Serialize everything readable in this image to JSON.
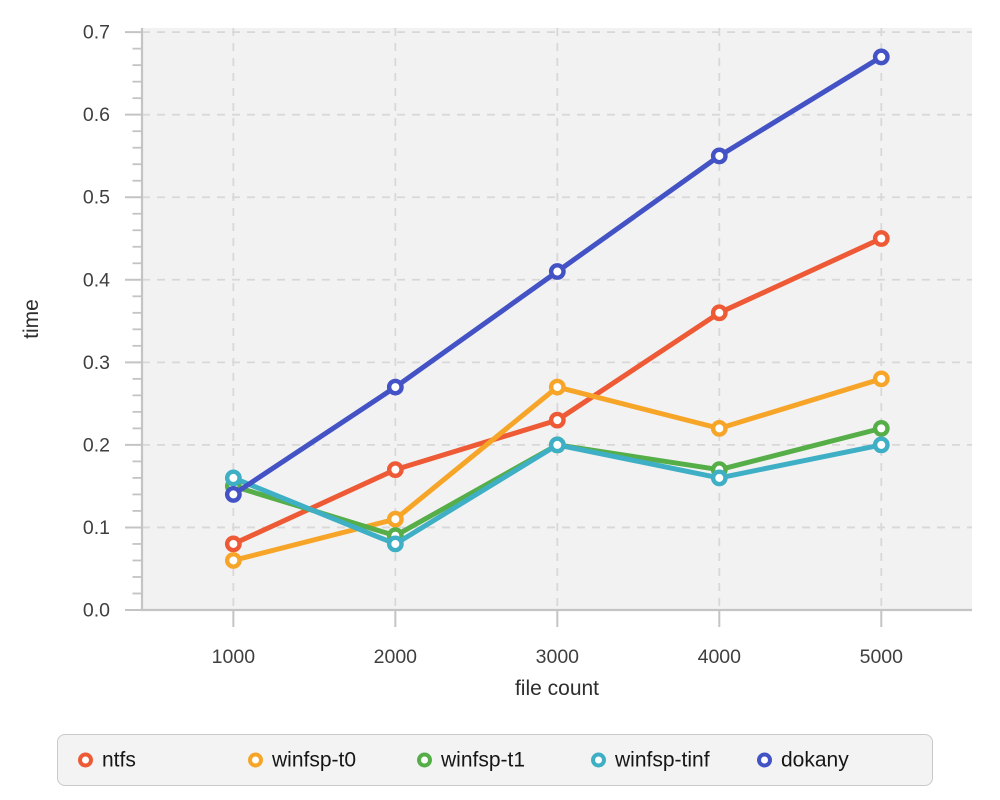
{
  "chart_data": {
    "type": "line",
    "title": "",
    "xlabel": "file count",
    "ylabel": "time",
    "x": [
      1000,
      2000,
      3000,
      4000,
      5000
    ],
    "series": [
      {
        "name": "ntfs",
        "color": "#ed5a35",
        "values": [
          0.08,
          0.17,
          0.23,
          0.36,
          0.45
        ]
      },
      {
        "name": "winfsp-t0",
        "color": "#f7a528",
        "values": [
          0.06,
          0.11,
          0.27,
          0.22,
          0.28
        ]
      },
      {
        "name": "winfsp-t1",
        "color": "#56ae49",
        "values": [
          0.15,
          0.09,
          0.2,
          0.17,
          0.22
        ]
      },
      {
        "name": "winfsp-tinf",
        "color": "#3eafc4",
        "values": [
          0.16,
          0.08,
          0.2,
          0.16,
          0.2
        ]
      },
      {
        "name": "dokany",
        "color": "#4352c5",
        "values": [
          0.14,
          0.27,
          0.41,
          0.55,
          0.67
        ]
      }
    ],
    "xlim": [
      436,
      5560
    ],
    "ylim": [
      0,
      0.705
    ],
    "xticks": [
      1000,
      2000,
      3000,
      4000,
      5000
    ],
    "yticks": [
      0.0,
      0.1,
      0.2,
      0.3,
      0.4,
      0.5,
      0.6,
      0.7
    ],
    "ytick_labels": [
      "0.0",
      "0.1",
      "0.2",
      "0.3",
      "0.4",
      "0.5",
      "0.6",
      "0.7"
    ],
    "y_minor_step": 0.02,
    "grid": true,
    "legend_position": "bottom",
    "marker": "open-circle",
    "plot_bg_color": "#f2f2f2",
    "grid_color": "#d8d8d8",
    "axis_color": "#c4c4c4",
    "tick_label_color": "#3f3f3f"
  }
}
